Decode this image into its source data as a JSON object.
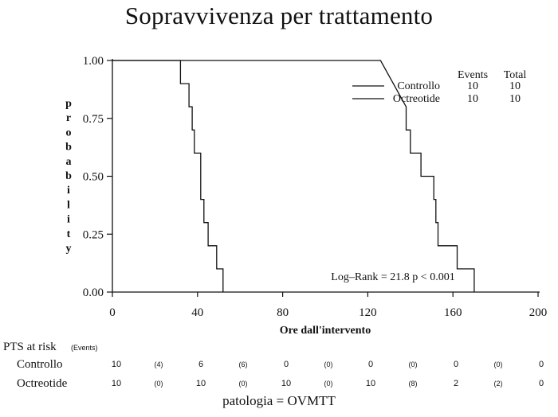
{
  "title": "Sopravvivenza per trattamento",
  "chart_data": {
    "type": "line",
    "subtype": "kaplan-meier step",
    "xlabel": "Ore dall'intervento",
    "ylabel": "probability",
    "xlim": [
      0,
      200
    ],
    "ylim": [
      0,
      1
    ],
    "xticks": [
      0,
      40,
      80,
      120,
      160,
      200
    ],
    "xtick_labels": [
      "0",
      "40",
      "80",
      "120",
      "160",
      "200"
    ],
    "yticks": [
      0,
      0.25,
      0.5,
      0.75,
      1.0
    ],
    "ytick_labels": [
      "0.00",
      "0.25",
      "0.50",
      "0.75",
      "1.00"
    ],
    "grid": false,
    "legend_position": "top-right",
    "legend_headers": [
      "Events",
      "Total"
    ],
    "series": [
      {
        "name": "Controllo",
        "events": "10",
        "total": "10",
        "line_style": "solid",
        "x": [
          0,
          32,
          32,
          36,
          36,
          37.5,
          37.5,
          38.5,
          38.5,
          41.5,
          41.5,
          43,
          43,
          45,
          45,
          49,
          49,
          52,
          52
        ],
        "y": [
          1.0,
          1.0,
          0.9,
          0.9,
          0.8,
          0.8,
          0.7,
          0.7,
          0.6,
          0.6,
          0.4,
          0.4,
          0.3,
          0.3,
          0.2,
          0.2,
          0.1,
          0.1,
          0.0
        ]
      },
      {
        "name": "Octreotide",
        "events": "10",
        "total": "10",
        "line_style": "solid",
        "x": [
          0,
          126,
          138,
          138,
          140,
          140,
          145,
          145,
          151,
          151,
          152,
          152,
          153,
          153,
          162,
          162,
          170,
          170
        ],
        "y": [
          1.0,
          1.0,
          0.8,
          0.7,
          0.7,
          0.6,
          0.6,
          0.5,
          0.5,
          0.4,
          0.4,
          0.3,
          0.3,
          0.2,
          0.2,
          0.1,
          0.1,
          0.0
        ]
      }
    ],
    "annotation": "Log–Rank = 21.8   p < 0.001"
  },
  "risk_table": {
    "title": "PTS at risk",
    "events_label": "(Events)",
    "rows": [
      {
        "name": "Controllo",
        "cells": [
          "10",
          "(4)",
          "6",
          "(6)",
          "0",
          "(0)",
          "0",
          "(0)",
          "0",
          "(0)",
          "0"
        ]
      },
      {
        "name": "Octreotide",
        "cells": [
          "10",
          "(0)",
          "10",
          "(0)",
          "10",
          "(0)",
          "10",
          "(8)",
          "2",
          "(2)",
          "0"
        ]
      }
    ]
  },
  "footnote": "patologia = OVMTT"
}
